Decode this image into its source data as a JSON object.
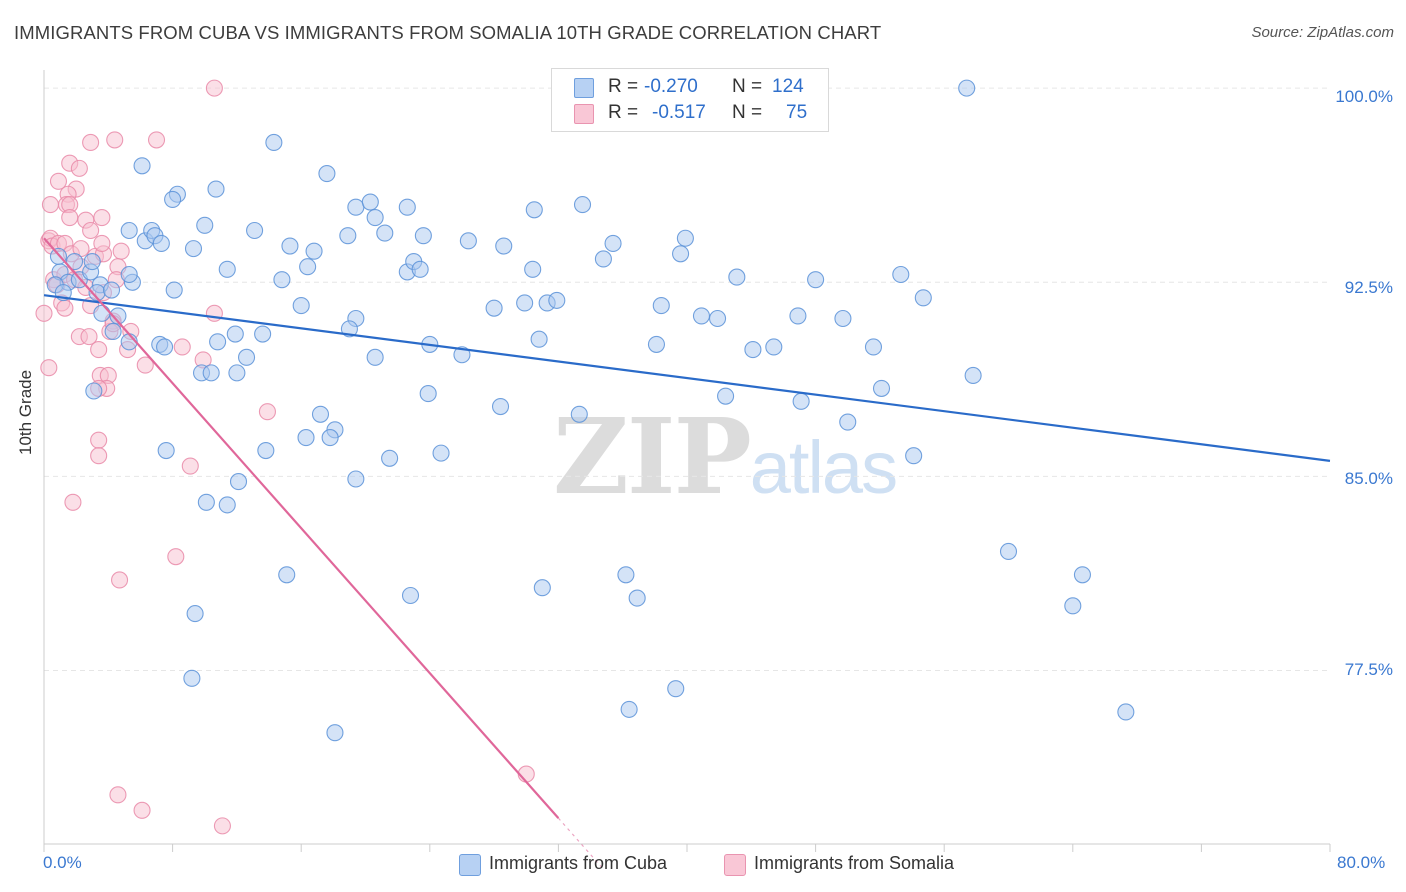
{
  "title": "IMMIGRANTS FROM CUBA VS IMMIGRANTS FROM SOMALIA 10TH GRADE CORRELATION CHART",
  "source": "Source: ZipAtlas.com",
  "watermark": {
    "zip": "ZIP",
    "atlas": "atlas"
  },
  "colors": {
    "cuba_fill": "#a9c8f0",
    "cuba_stroke": "#5b92d8",
    "cuba_line": "#2a6bc9",
    "somalia_fill": "#f7bfd0",
    "somalia_stroke": "#e98aa8",
    "somalia_line": "#e0679a",
    "grid": "#e6e6e6",
    "tick_text": "#3a78d0"
  },
  "legend": {
    "cuba": {
      "r_label": "R =",
      "r_value": "-0.270",
      "n_label": "N =",
      "n_value": "124"
    },
    "somalia": {
      "r_label": "R =",
      "r_value": "-0.517",
      "n_label": "N =",
      "n_value": "75"
    }
  },
  "chart_data": {
    "type": "scatter",
    "title": "IMMIGRANTS FROM CUBA VS IMMIGRANTS FROM SOMALIA 10TH GRADE CORRELATION CHART",
    "xlabel": "",
    "ylabel": "10th Grade",
    "xlim": [
      0,
      80
    ],
    "ylim": [
      70.8,
      100.7
    ],
    "x_ticks": [
      "0.0%",
      "80.0%"
    ],
    "y_ticks": [
      {
        "value": 100.0,
        "label": "100.0%"
      },
      {
        "value": 92.5,
        "label": "92.5%"
      },
      {
        "value": 85.0,
        "label": "85.0%"
      },
      {
        "value": 77.5,
        "label": "77.5%"
      }
    ],
    "legend_position": "top-center",
    "series": [
      {
        "name": "Immigrants from Cuba",
        "trend": {
          "x": [
            0,
            80
          ],
          "y": [
            92.0,
            85.6
          ]
        },
        "points": [
          [
            57.4,
            100.0
          ],
          [
            14.3,
            97.9
          ],
          [
            6.1,
            97.0
          ],
          [
            17.6,
            96.7
          ],
          [
            8.3,
            95.9
          ],
          [
            8.0,
            95.7
          ],
          [
            10.7,
            96.1
          ],
          [
            19.4,
            95.4
          ],
          [
            20.3,
            95.6
          ],
          [
            20.6,
            95.0
          ],
          [
            22.6,
            95.4
          ],
          [
            30.5,
            95.3
          ],
          [
            33.5,
            95.5
          ],
          [
            1.0,
            92.9
          ],
          [
            1.5,
            92.5
          ],
          [
            1.9,
            93.3
          ],
          [
            2.2,
            92.6
          ],
          [
            2.9,
            92.9
          ],
          [
            3.0,
            93.3
          ],
          [
            3.5,
            92.4
          ],
          [
            0.7,
            92.4
          ],
          [
            1.2,
            92.1
          ],
          [
            0.9,
            93.5
          ],
          [
            5.5,
            92.5
          ],
          [
            5.3,
            92.8
          ],
          [
            5.3,
            94.5
          ],
          [
            6.3,
            94.1
          ],
          [
            6.7,
            94.5
          ],
          [
            6.9,
            94.3
          ],
          [
            7.3,
            94.0
          ],
          [
            9.3,
            93.8
          ],
          [
            10.0,
            94.7
          ],
          [
            13.1,
            94.5
          ],
          [
            15.3,
            93.9
          ],
          [
            16.4,
            93.1
          ],
          [
            16.8,
            93.7
          ],
          [
            18.9,
            94.3
          ],
          [
            21.2,
            94.4
          ],
          [
            22.6,
            92.9
          ],
          [
            23.0,
            93.3
          ],
          [
            23.4,
            93.0
          ],
          [
            23.6,
            94.3
          ],
          [
            26.4,
            94.1
          ],
          [
            28.6,
            93.9
          ],
          [
            30.4,
            93.0
          ],
          [
            34.8,
            93.4
          ],
          [
            35.4,
            94.0
          ],
          [
            39.6,
            93.6
          ],
          [
            39.9,
            94.2
          ],
          [
            11.4,
            93.0
          ],
          [
            14.8,
            92.6
          ],
          [
            3.3,
            92.1
          ],
          [
            4.2,
            92.2
          ],
          [
            8.1,
            92.2
          ],
          [
            3.6,
            91.3
          ],
          [
            4.6,
            91.2
          ],
          [
            16.0,
            91.6
          ],
          [
            19.4,
            91.1
          ],
          [
            19.0,
            90.7
          ],
          [
            28.0,
            91.5
          ],
          [
            29.9,
            91.7
          ],
          [
            31.3,
            91.7
          ],
          [
            31.9,
            91.8
          ],
          [
            38.4,
            91.6
          ],
          [
            40.9,
            91.2
          ],
          [
            41.9,
            91.1
          ],
          [
            43.1,
            92.7
          ],
          [
            46.9,
            91.2
          ],
          [
            48.0,
            92.6
          ],
          [
            49.7,
            91.1
          ],
          [
            53.3,
            92.8
          ],
          [
            54.7,
            91.9
          ],
          [
            7.2,
            90.1
          ],
          [
            7.5,
            90.0
          ],
          [
            10.8,
            90.2
          ],
          [
            11.9,
            90.5
          ],
          [
            13.6,
            90.5
          ],
          [
            4.3,
            90.6
          ],
          [
            5.3,
            90.2
          ],
          [
            9.8,
            89.0
          ],
          [
            10.4,
            89.0
          ],
          [
            12.6,
            89.6
          ],
          [
            20.6,
            89.6
          ],
          [
            24.0,
            90.1
          ],
          [
            26.0,
            89.7
          ],
          [
            30.8,
            90.3
          ],
          [
            38.1,
            90.1
          ],
          [
            44.1,
            89.9
          ],
          [
            45.4,
            90.0
          ],
          [
            51.6,
            90.0
          ],
          [
            3.1,
            88.3
          ],
          [
            12.0,
            89.0
          ],
          [
            23.9,
            88.2
          ],
          [
            28.4,
            87.7
          ],
          [
            42.4,
            88.1
          ],
          [
            47.1,
            87.9
          ],
          [
            52.1,
            88.4
          ],
          [
            57.8,
            88.9
          ],
          [
            17.2,
            87.4
          ],
          [
            18.1,
            86.8
          ],
          [
            17.8,
            86.5
          ],
          [
            33.3,
            87.4
          ],
          [
            50.0,
            87.1
          ],
          [
            7.6,
            86.0
          ],
          [
            13.8,
            86.0
          ],
          [
            16.3,
            86.5
          ],
          [
            21.5,
            85.7
          ],
          [
            24.7,
            85.9
          ],
          [
            54.1,
            85.8
          ],
          [
            12.1,
            84.8
          ],
          [
            19.4,
            84.9
          ],
          [
            10.1,
            84.0
          ],
          [
            11.4,
            83.9
          ],
          [
            15.1,
            81.2
          ],
          [
            22.8,
            80.4
          ],
          [
            31.0,
            80.7
          ],
          [
            36.2,
            81.2
          ],
          [
            36.9,
            80.3
          ],
          [
            60.0,
            82.1
          ],
          [
            64.6,
            81.2
          ],
          [
            64.0,
            80.0
          ],
          [
            9.4,
            79.7
          ],
          [
            9.2,
            77.2
          ],
          [
            36.4,
            76.0
          ],
          [
            39.3,
            76.8
          ],
          [
            67.3,
            75.9
          ],
          [
            18.1,
            75.1
          ]
        ]
      },
      {
        "name": "Immigrants from Somalia",
        "trend": {
          "x": [
            0,
            32.0
          ],
          "y": [
            94.2,
            71.8
          ]
        },
        "trend_dashed": {
          "x": [
            32.0,
            34.7
          ],
          "y": [
            71.8,
            69.9
          ]
        },
        "points": [
          [
            10.6,
            100.0
          ],
          [
            4.4,
            98.0
          ],
          [
            2.9,
            97.9
          ],
          [
            7.0,
            98.0
          ],
          [
            1.6,
            97.1
          ],
          [
            2.2,
            96.9
          ],
          [
            2.0,
            96.1
          ],
          [
            1.5,
            95.9
          ],
          [
            1.4,
            95.5
          ],
          [
            1.6,
            95.5
          ],
          [
            0.4,
            95.5
          ],
          [
            0.9,
            96.4
          ],
          [
            1.6,
            95.0
          ],
          [
            3.6,
            95.0
          ],
          [
            2.6,
            94.9
          ],
          [
            2.9,
            94.5
          ],
          [
            0.3,
            94.1
          ],
          [
            0.4,
            94.2
          ],
          [
            0.5,
            93.9
          ],
          [
            0.9,
            94.0
          ],
          [
            1.3,
            94.0
          ],
          [
            1.7,
            93.6
          ],
          [
            2.3,
            93.8
          ],
          [
            3.2,
            93.5
          ],
          [
            3.7,
            93.6
          ],
          [
            3.6,
            94.0
          ],
          [
            4.8,
            93.7
          ],
          [
            4.6,
            93.1
          ],
          [
            0.6,
            92.6
          ],
          [
            0.8,
            92.4
          ],
          [
            1.3,
            92.8
          ],
          [
            1.9,
            92.6
          ],
          [
            2.3,
            93.1
          ],
          [
            2.6,
            92.3
          ],
          [
            3.7,
            92.1
          ],
          [
            4.5,
            92.6
          ],
          [
            1.1,
            91.7
          ],
          [
            1.3,
            91.5
          ],
          [
            2.9,
            91.6
          ],
          [
            4.3,
            91.0
          ],
          [
            10.6,
            91.3
          ],
          [
            0.0,
            91.3
          ],
          [
            2.2,
            90.4
          ],
          [
            2.8,
            90.4
          ],
          [
            4.1,
            90.6
          ],
          [
            4.3,
            90.9
          ],
          [
            5.4,
            90.6
          ],
          [
            8.6,
            90.0
          ],
          [
            3.4,
            89.9
          ],
          [
            5.2,
            89.9
          ],
          [
            0.3,
            89.2
          ],
          [
            6.3,
            89.3
          ],
          [
            9.9,
            89.5
          ],
          [
            3.5,
            88.9
          ],
          [
            4.0,
            88.9
          ],
          [
            3.9,
            88.4
          ],
          [
            3.4,
            88.4
          ],
          [
            13.9,
            87.5
          ],
          [
            3.4,
            86.4
          ],
          [
            3.4,
            85.8
          ],
          [
            9.1,
            85.4
          ],
          [
            1.8,
            84.0
          ],
          [
            8.2,
            81.9
          ],
          [
            4.7,
            81.0
          ],
          [
            4.6,
            72.7
          ],
          [
            6.1,
            72.1
          ],
          [
            11.1,
            71.5
          ],
          [
            30.0,
            73.5
          ]
        ]
      }
    ]
  },
  "bottom_legend": {
    "cuba": "Immigrants from Cuba",
    "somalia": "Immigrants from Somalia"
  }
}
